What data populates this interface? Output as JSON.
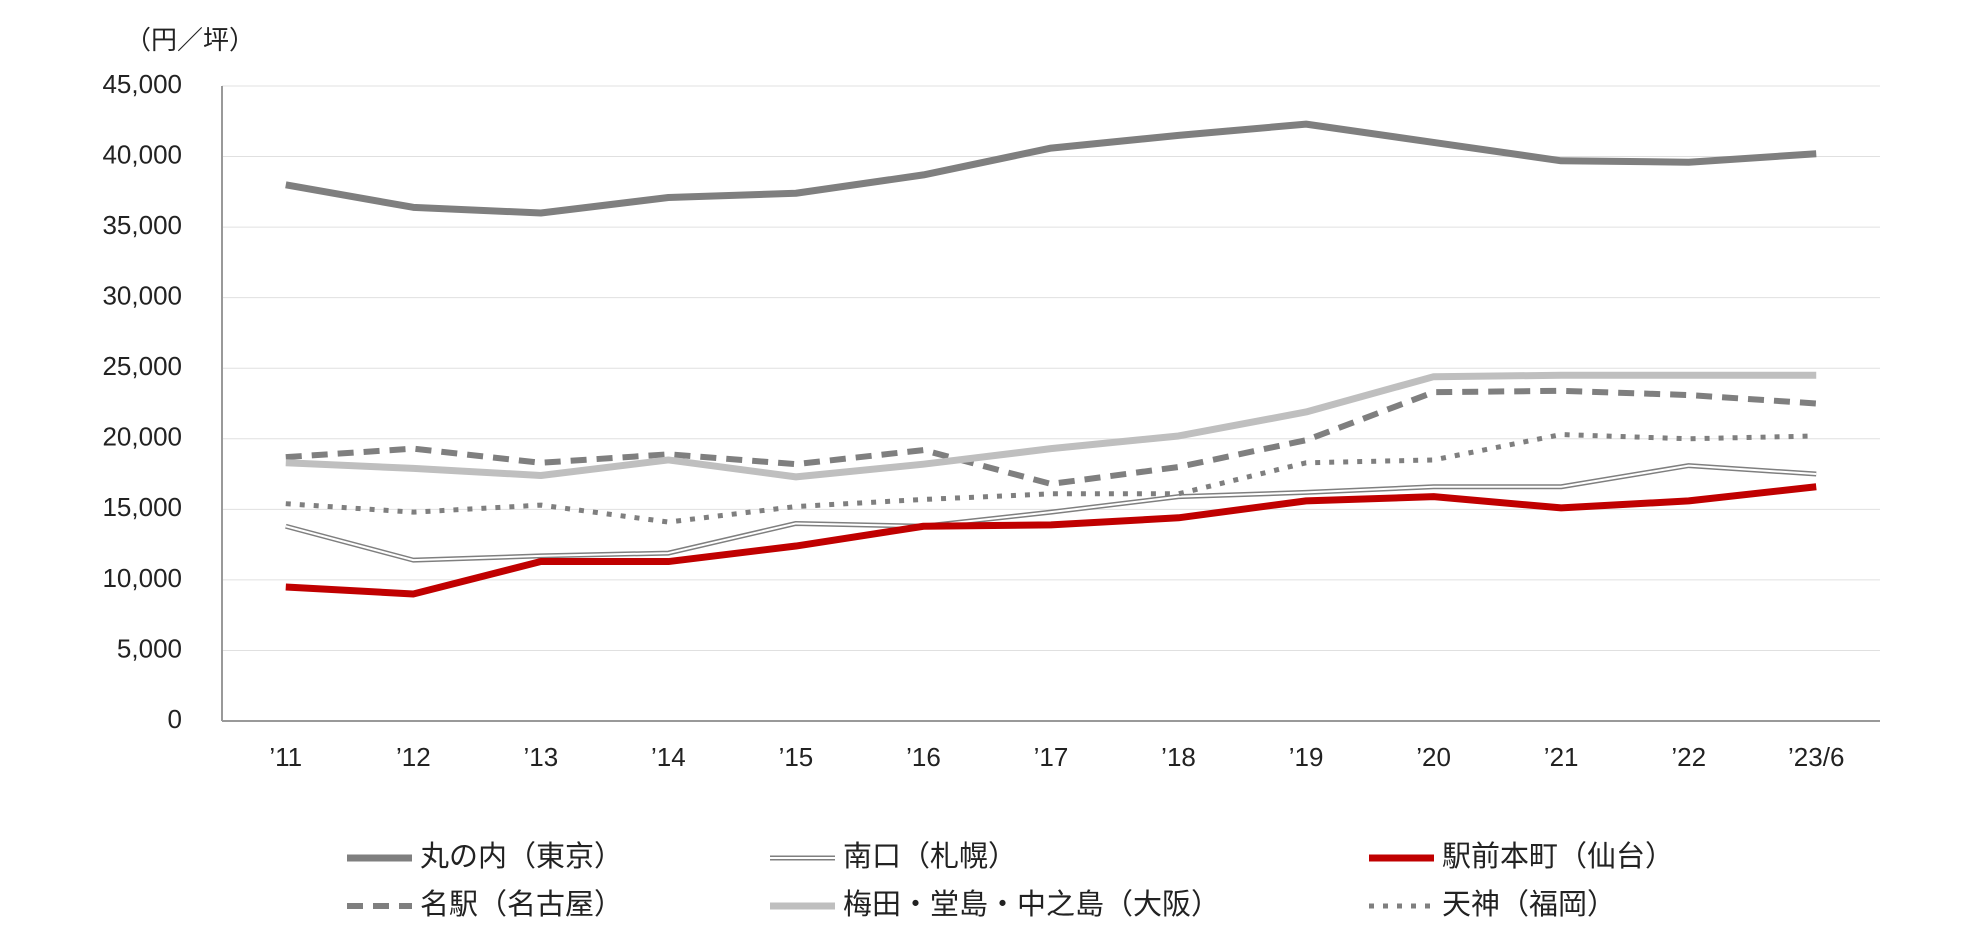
{
  "chart_data": {
    "type": "line",
    "y_label": "（円／坪）",
    "categories": [
      "’11",
      "’12",
      "’13",
      "’14",
      "’15",
      "’16",
      "’17",
      "’18",
      "’19",
      "’20",
      "’21",
      "’22",
      "’23/6"
    ],
    "ylim": [
      0,
      45000
    ],
    "yticks": [
      0,
      {
        "value": 5000,
        "label": "5,000"
      },
      {
        "value": 10000,
        "label": "10,000"
      },
      {
        "value": 15000,
        "label": "15,000"
      },
      {
        "value": 20000,
        "label": "20,000"
      },
      {
        "value": 25000,
        "label": "25,000"
      },
      {
        "value": 30000,
        "label": "30,000"
      },
      {
        "value": 35000,
        "label": "35,000"
      },
      {
        "value": 40000,
        "label": "40,000"
      },
      {
        "value": 45000,
        "label": "45,000"
      }
    ],
    "grid": true,
    "series": [
      {
        "name": "丸の内（東京）",
        "color": "#7f7f7f",
        "line_style": "solid",
        "values": [
          38000,
          36400,
          36000,
          37100,
          37400,
          38700,
          40600,
          41500,
          42300,
          41000,
          39700,
          39600,
          40200
        ]
      },
      {
        "name": "南口（札幌）",
        "color": "#7f7f7f",
        "line_style": "double",
        "values": [
          13800,
          11400,
          11700,
          11900,
          14000,
          13800,
          14800,
          15900,
          16200,
          16600,
          16600,
          18100,
          17500
        ]
      },
      {
        "name": "駅前本町（仙台）",
        "color": "#c00000",
        "line_style": "solid",
        "values": [
          9500,
          9000,
          11300,
          11300,
          12400,
          13800,
          13900,
          14400,
          15600,
          15900,
          15100,
          15600,
          16600
        ]
      },
      {
        "name": "名駅（名古屋）",
        "color": "#7f7f7f",
        "line_style": "dashed",
        "values": [
          18700,
          19300,
          18300,
          18900,
          18200,
          19200,
          16800,
          18000,
          19900,
          23300,
          23400,
          23100,
          22500
        ]
      },
      {
        "name": "梅田・堂島・中之島（大阪）",
        "color": "#bfbfbf",
        "line_style": "solid",
        "values": [
          18300,
          17900,
          17400,
          18500,
          17300,
          18200,
          19300,
          20200,
          21900,
          24400,
          24500,
          24500,
          24500
        ]
      },
      {
        "name": "天神（福岡）",
        "color": "#7f7f7f",
        "line_style": "dotted",
        "values": [
          15400,
          14800,
          15300,
          14100,
          15200,
          15700,
          16100,
          16100,
          18300,
          18500,
          20300,
          20000,
          20200
        ]
      }
    ]
  }
}
